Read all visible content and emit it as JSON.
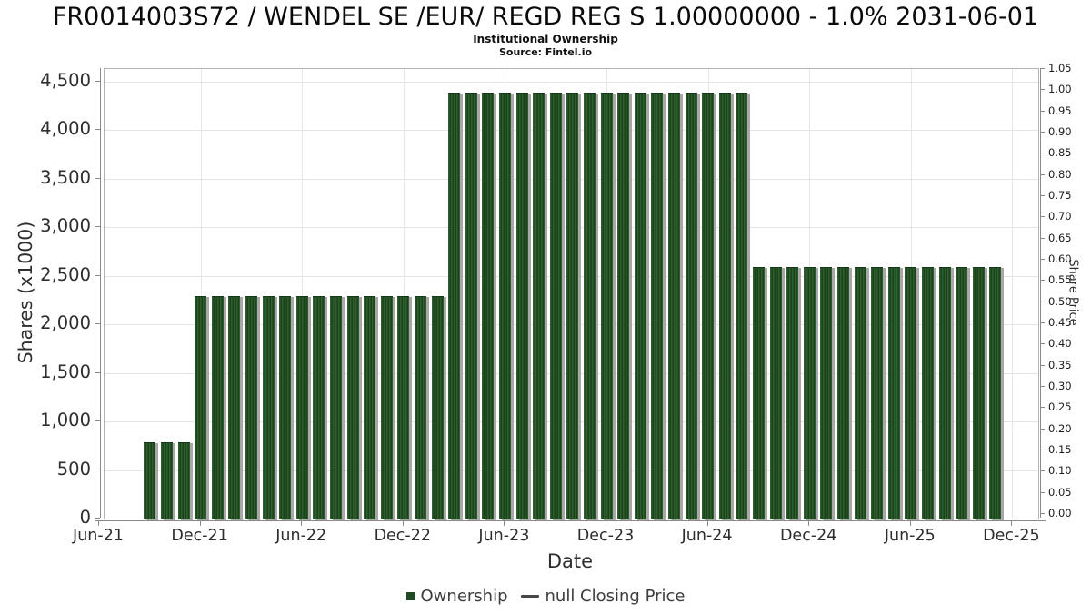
{
  "chart_data": {
    "type": "bar",
    "title": "FR0014003S72 / WENDEL SE /EUR/ REGD REG S 1.00000000 - 1.0% 2031-06-01",
    "subtitle": "Institutional Ownership",
    "source": "Source: Fintel.io",
    "xlabel": "Date",
    "ylabel_left": "Shares (x1000)",
    "ylabel_right": "Share Price",
    "value_units": "thousands of shares",
    "grid": true,
    "legend_position": "bottom",
    "legend": [
      {
        "marker": "square",
        "color": "#1d4a22",
        "label": "Ownership"
      },
      {
        "marker": "line",
        "color": "#474747",
        "label": "null Closing Price"
      }
    ],
    "bar_color": "#255025",
    "x_ticks": [
      "Jun-21",
      "Dec-21",
      "Jun-22",
      "Dec-22",
      "Jun-23",
      "Dec-23",
      "Jun-24",
      "Dec-24",
      "Jun-25",
      "Dec-25"
    ],
    "y_left_ticks": [
      "0",
      "500",
      "1,000",
      "1,500",
      "2,000",
      "2,500",
      "3,000",
      "3,500",
      "4,000",
      "4,500"
    ],
    "y_right_ticks": [
      "0.00",
      "0.05",
      "0.10",
      "0.15",
      "0.20",
      "0.25",
      "0.30",
      "0.35",
      "0.40",
      "0.45",
      "0.50",
      "0.55",
      "0.60",
      "0.65",
      "0.70",
      "0.75",
      "0.80",
      "0.85",
      "0.90",
      "0.95",
      "1.00",
      "1.05"
    ],
    "ylim_left": [
      0,
      4630
    ],
    "ylim_right": [
      0,
      1.05
    ],
    "bars": [
      {
        "month": "Sep-21",
        "value": 790
      },
      {
        "month": "Oct-21",
        "value": 790
      },
      {
        "month": "Nov-21",
        "value": 790
      },
      {
        "month": "Dec-21",
        "value": 2290
      },
      {
        "month": "Jan-22",
        "value": 2290
      },
      {
        "month": "Feb-22",
        "value": 2290
      },
      {
        "month": "Mar-22",
        "value": 2290
      },
      {
        "month": "Apr-22",
        "value": 2290
      },
      {
        "month": "May-22",
        "value": 2290
      },
      {
        "month": "Jun-22",
        "value": 2290
      },
      {
        "month": "Jul-22",
        "value": 2290
      },
      {
        "month": "Aug-22",
        "value": 2290
      },
      {
        "month": "Sep-22",
        "value": 2290
      },
      {
        "month": "Oct-22",
        "value": 2290
      },
      {
        "month": "Nov-22",
        "value": 2290
      },
      {
        "month": "Dec-22",
        "value": 2290
      },
      {
        "month": "Jan-23",
        "value": 2290
      },
      {
        "month": "Feb-23",
        "value": 2290
      },
      {
        "month": "Mar-23",
        "value": 4390
      },
      {
        "month": "Apr-23",
        "value": 4390
      },
      {
        "month": "May-23",
        "value": 4390
      },
      {
        "month": "Jun-23",
        "value": 4390
      },
      {
        "month": "Jul-23",
        "value": 4390
      },
      {
        "month": "Aug-23",
        "value": 4390
      },
      {
        "month": "Sep-23",
        "value": 4390
      },
      {
        "month": "Oct-23",
        "value": 4390
      },
      {
        "month": "Nov-23",
        "value": 4390
      },
      {
        "month": "Dec-23",
        "value": 4390
      },
      {
        "month": "Jan-24",
        "value": 4390
      },
      {
        "month": "Feb-24",
        "value": 4390
      },
      {
        "month": "Mar-24",
        "value": 4390
      },
      {
        "month": "Apr-24",
        "value": 4390
      },
      {
        "month": "May-24",
        "value": 4390
      },
      {
        "month": "Jun-24",
        "value": 4390
      },
      {
        "month": "Jul-24",
        "value": 4390
      },
      {
        "month": "Aug-24",
        "value": 4390
      },
      {
        "month": "Sep-24",
        "value": 2590
      },
      {
        "month": "Oct-24",
        "value": 2590
      },
      {
        "month": "Nov-24",
        "value": 2590
      },
      {
        "month": "Dec-24",
        "value": 2590
      },
      {
        "month": "Jan-25",
        "value": 2590
      },
      {
        "month": "Feb-25",
        "value": 2590
      },
      {
        "month": "Mar-25",
        "value": 2590
      },
      {
        "month": "Apr-25",
        "value": 2590
      },
      {
        "month": "May-25",
        "value": 2590
      },
      {
        "month": "Jun-25",
        "value": 2590
      },
      {
        "month": "Jul-25",
        "value": 2590
      },
      {
        "month": "Aug-25",
        "value": 2590
      },
      {
        "month": "Sep-25",
        "value": 2590
      },
      {
        "month": "Oct-25",
        "value": 2590
      },
      {
        "month": "Nov-25",
        "value": 2590
      }
    ]
  }
}
